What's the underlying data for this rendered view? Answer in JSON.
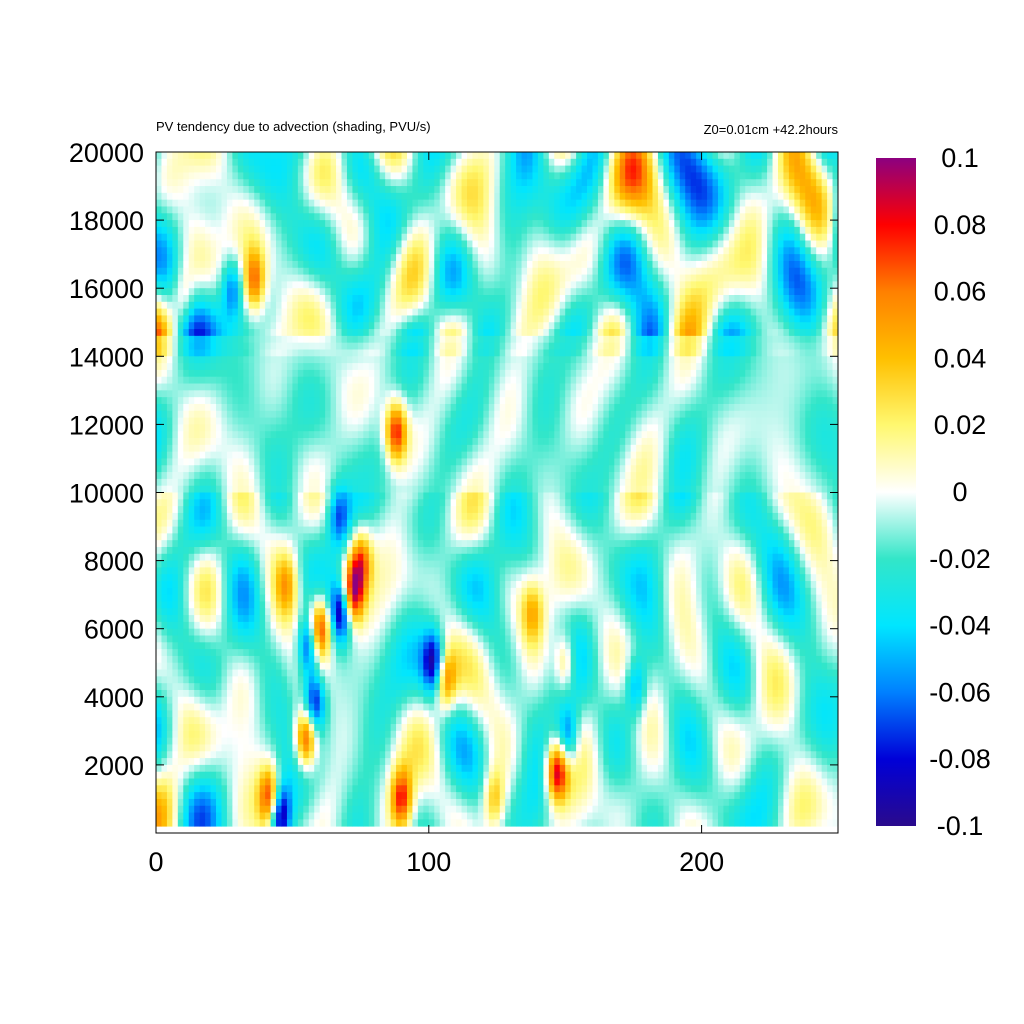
{
  "chart_data": {
    "type": "heatmap",
    "title": "PV tendency due to advection (shading, PVU/s)",
    "subtitle": "Z0=0.01cm   +42.2hours",
    "xlabel": "",
    "ylabel": "",
    "xlim": [
      0,
      250
    ],
    "ylim": [
      0,
      20000
    ],
    "x_ticks": [
      0,
      100,
      200
    ],
    "y_ticks": [
      2000,
      4000,
      6000,
      8000,
      10000,
      12000,
      14000,
      16000,
      18000,
      20000
    ],
    "colorbar": {
      "range": [
        -0.1,
        0.1
      ],
      "ticks": [
        0.1,
        0.08,
        0.06,
        0.04,
        0.02,
        0,
        -0.02,
        -0.04,
        -0.06,
        -0.08,
        -0.1
      ],
      "colors": [
        "#2a0a8c",
        "#0000d8",
        "#0080ff",
        "#00e6ff",
        "#33e6c8",
        "#ffffff",
        "#fff870",
        "#ffc000",
        "#ff8000",
        "#ff0000",
        "#8c0080"
      ]
    },
    "features": [
      {
        "x": 45,
        "y": 600,
        "value": -0.1
      },
      {
        "x": 42,
        "y": 1000,
        "value": 0.1
      },
      {
        "x": 55,
        "y": 2800,
        "value": 0.1
      },
      {
        "x": 58,
        "y": 3800,
        "value": -0.08
      },
      {
        "x": 60,
        "y": 6000,
        "value": 0.1
      },
      {
        "x": 56,
        "y": 5500,
        "value": -0.08
      },
      {
        "x": 72,
        "y": 7000,
        "value": 0.1
      },
      {
        "x": 68,
        "y": 6500,
        "value": -0.09
      },
      {
        "x": 75,
        "y": 8000,
        "value": 0.07
      },
      {
        "x": 48,
        "y": 7300,
        "value": 0.04
      },
      {
        "x": 88,
        "y": 11800,
        "value": 0.09
      },
      {
        "x": 102,
        "y": 5000,
        "value": -0.08
      },
      {
        "x": 106,
        "y": 4500,
        "value": 0.07
      },
      {
        "x": 150,
        "y": 5000,
        "value": 0.055
      },
      {
        "x": 147,
        "y": 1800,
        "value": 0.1
      },
      {
        "x": 151,
        "y": 2800,
        "value": -0.06
      },
      {
        "x": 176,
        "y": 4300,
        "value": -0.05
      },
      {
        "x": 90,
        "y": 1000,
        "value": 0.08
      },
      {
        "x": 124,
        "y": 1000,
        "value": 0.05
      },
      {
        "x": 36,
        "y": 16200,
        "value": 0.07
      },
      {
        "x": 28,
        "y": 16000,
        "value": -0.05
      },
      {
        "x": 67,
        "y": 9300,
        "value": -0.05
      },
      {
        "x": 10,
        "y": 15700,
        "value": 0.03
      },
      {
        "x": 138,
        "y": 6500,
        "value": 0.04
      }
    ]
  }
}
